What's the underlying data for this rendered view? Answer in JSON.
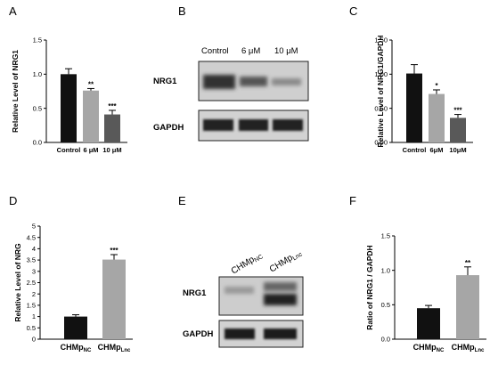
{
  "panels": {
    "A": "A",
    "B": "B",
    "C": "C",
    "D": "D",
    "E": "E",
    "F": "F"
  },
  "chart_data": [
    {
      "id": "A",
      "type": "bar",
      "ylabel": "Relative Level of NRG1",
      "categories": [
        "Control",
        "6 μM",
        "10 μM"
      ],
      "values": [
        1.0,
        0.76,
        0.41
      ],
      "errors": [
        0.08,
        0.03,
        0.06
      ],
      "significance": [
        "",
        "**",
        "***"
      ],
      "colors": [
        "#111111",
        "#a6a6a6",
        "#595959"
      ],
      "ylim": [
        0,
        1.5
      ],
      "yticks": [
        "0.0",
        "0.5",
        "1.0",
        "1.5"
      ]
    },
    {
      "id": "C",
      "type": "bar",
      "ylabel": "Relative Level of NRG1/GAPDH",
      "categories": [
        "Control",
        "6μM",
        "10μM"
      ],
      "values": [
        1.01,
        0.71,
        0.36
      ],
      "errors": [
        0.13,
        0.06,
        0.05
      ],
      "significance": [
        "",
        "*",
        "***"
      ],
      "colors": [
        "#111111",
        "#a6a6a6",
        "#595959"
      ],
      "ylim": [
        0,
        1.5
      ],
      "yticks": [
        "0.00",
        "0.50",
        "1.00",
        "1.50"
      ]
    },
    {
      "id": "D",
      "type": "bar",
      "ylabel": "Relative Level of NRG",
      "categories": [
        {
          "base": "CHMp",
          "sub": "NC"
        },
        {
          "base": "CHMp",
          "sub": "Lnc"
        }
      ],
      "values": [
        1.0,
        3.52
      ],
      "errors": [
        0.08,
        0.22
      ],
      "significance": [
        "",
        "***"
      ],
      "colors": [
        "#111111",
        "#a6a6a6"
      ],
      "ylim": [
        0,
        5
      ],
      "yticks": [
        "0",
        "0.5",
        "1",
        "1.5",
        "2",
        "2.5",
        "3",
        "3.5",
        "4",
        "4.5",
        "5"
      ]
    },
    {
      "id": "F",
      "type": "bar",
      "ylabel": "Ratio of NRG1 / GAPDH",
      "categories": [
        {
          "base": "CHMp",
          "sub": "NC"
        },
        {
          "base": "CHMp",
          "sub": "Lnc"
        }
      ],
      "values": [
        0.45,
        0.93
      ],
      "errors": [
        0.04,
        0.12
      ],
      "significance": [
        "",
        "**"
      ],
      "colors": [
        "#111111",
        "#a6a6a6"
      ],
      "ylim": [
        0,
        1.5
      ],
      "yticks": [
        "0.0",
        "0.5",
        "1.0",
        "1.5"
      ]
    }
  ],
  "blots": {
    "B": {
      "lanes": [
        "Control",
        "6 μM",
        "10 μM"
      ],
      "rows": [
        "NRG1",
        "GAPDH"
      ]
    },
    "E": {
      "lanes": [
        {
          "base": "CHMp",
          "sub": "NC"
        },
        {
          "base": "CHMp",
          "sub": "Lnc"
        }
      ],
      "rows": [
        "NRG1",
        "GAPDH"
      ]
    }
  }
}
